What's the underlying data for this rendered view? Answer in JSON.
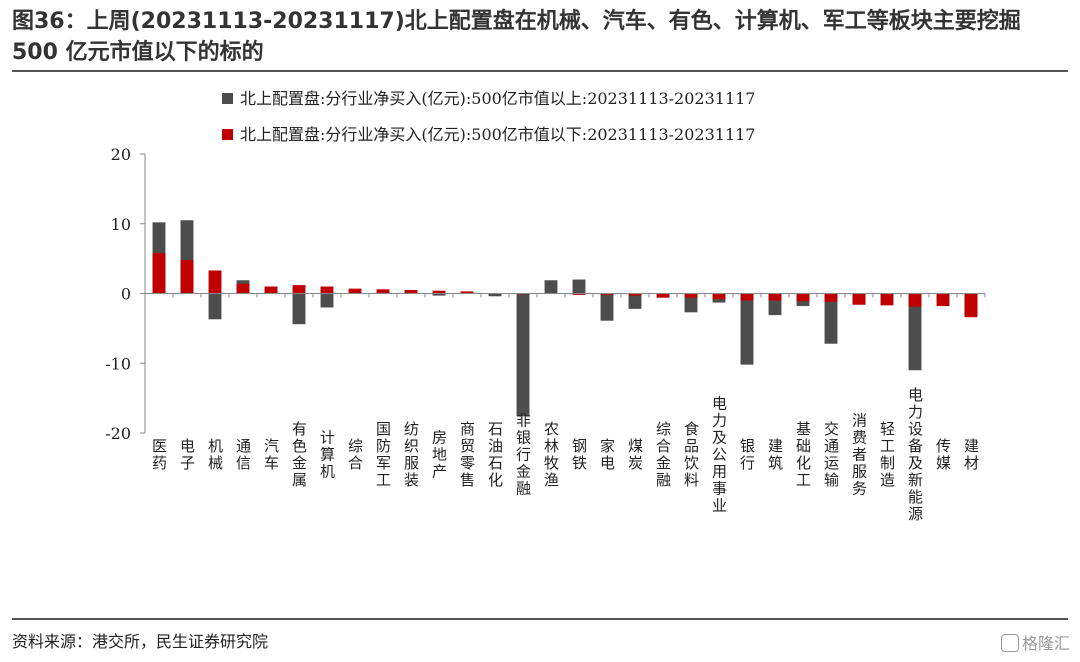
{
  "title": "图36：上周(20231113-20231117)北上配置盘在机械、汽车、有色、计算机、军工等板块主要挖掘 500 亿元市值以下的标的",
  "source": "资料来源：港交所，民生证券研究院",
  "watermark": "格隆汇",
  "chart_data": {
    "type": "bar",
    "stacked": true,
    "categories": [
      "医药",
      "电子",
      "机械",
      "通信",
      "汽车",
      "有色金属",
      "计算机",
      "综合",
      "国防军工",
      "纺织服装",
      "房地产",
      "商贸零售",
      "石油石化",
      "非银行金融",
      "农林牧渔",
      "钢铁",
      "家电",
      "煤炭",
      "综合金融",
      "食品饮料",
      "电力及公用事业",
      "银行",
      "建筑",
      "基础化工",
      "交通运输",
      "消费者服务",
      "轻工制造",
      "电力设备及新能源",
      "传媒",
      "建材"
    ],
    "series": [
      {
        "name": "北上配置盘:分行业净买入(亿元):500亿市值以上:20231113-20231117",
        "color": "#4d4d4d",
        "values": [
          10.2,
          10.5,
          -3.7,
          1.9,
          1.0,
          -4.4,
          -2.0,
          0.0,
          0.2,
          0.1,
          -0.3,
          0.0,
          -0.4,
          -17.6,
          1.9,
          2.0,
          -3.9,
          -2.2,
          0.0,
          -2.7,
          -1.3,
          -10.2,
          -3.1,
          -1.8,
          -7.2,
          -1.6,
          -0.5,
          -11.0,
          -0.8,
          -3.2
        ]
      },
      {
        "name": "北上配置盘:分行业净买入(亿元):500亿市值以下:20231113-20231117",
        "color": "#c00000",
        "values": [
          5.8,
          4.8,
          3.3,
          1.4,
          1.0,
          1.2,
          1.0,
          0.7,
          0.6,
          0.5,
          0.4,
          0.3,
          0.0,
          -0.1,
          0.0,
          -0.2,
          -0.2,
          -0.3,
          -0.6,
          -0.6,
          -0.8,
          -1.0,
          -1.0,
          -1.1,
          -1.2,
          -1.6,
          -1.7,
          -1.9,
          -1.8,
          -3.4
        ]
      }
    ],
    "ylim": [
      -20,
      20
    ],
    "yticks": [
      -20,
      -10,
      0,
      10,
      20
    ],
    "grid": false,
    "legend_position": "top-center"
  }
}
